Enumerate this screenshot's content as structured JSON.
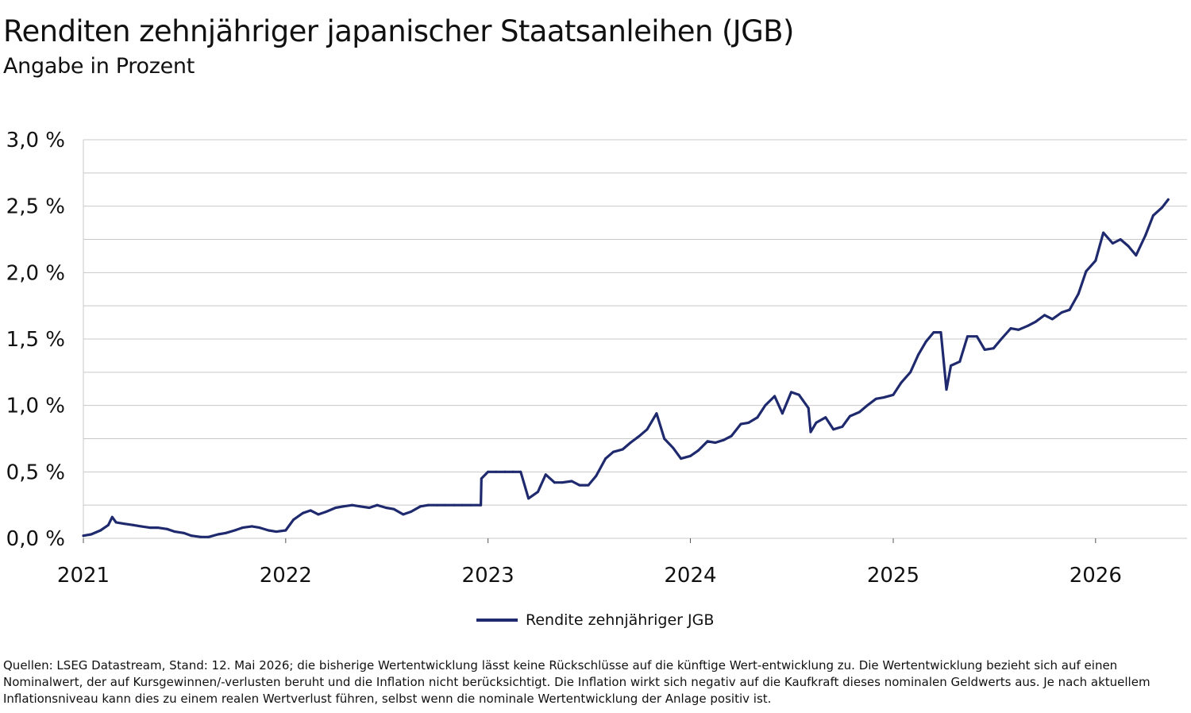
{
  "header": {
    "title": "Renditen zehnjähriger japanischer Staatsanleihen (JGB)",
    "subtitle": "Angabe in Prozent"
  },
  "colors": {
    "series": "#1f2a6e",
    "grid": "#c8c8c8",
    "axis": "#555555"
  },
  "chart_data": {
    "type": "line",
    "title": "Renditen zehnjähriger japanischer Staatsanleihen (JGB)",
    "subtitle": "Angabe in Prozent",
    "xlabel": "",
    "ylabel": "",
    "x_ticks": [
      "2021",
      "2022",
      "2023",
      "2024",
      "2025",
      "2026"
    ],
    "y_ticks": [
      "0,0 %",
      "0,5 %",
      "1,0 %",
      "1,5 %",
      "2,0 %",
      "2,5 %",
      "3,0 %"
    ],
    "xlim": [
      "2021-01-01",
      "2026-06-15"
    ],
    "ylim": [
      0,
      3.0
    ],
    "grid": true,
    "legend_position": "bottom-center",
    "series": [
      {
        "name": "Rendite zehnjähriger JGB",
        "x": [
          "2021-01-01",
          "2021-01-15",
          "2021-02-01",
          "2021-02-15",
          "2021-02-22",
          "2021-03-01",
          "2021-03-15",
          "2021-04-01",
          "2021-04-15",
          "2021-05-01",
          "2021-05-15",
          "2021-06-01",
          "2021-06-15",
          "2021-07-01",
          "2021-07-15",
          "2021-08-01",
          "2021-08-15",
          "2021-09-01",
          "2021-09-15",
          "2021-10-01",
          "2021-10-15",
          "2021-11-01",
          "2021-11-15",
          "2021-12-01",
          "2021-12-15",
          "2022-01-01",
          "2022-01-15",
          "2022-02-01",
          "2022-02-15",
          "2022-03-01",
          "2022-03-15",
          "2022-04-01",
          "2022-04-15",
          "2022-05-01",
          "2022-05-15",
          "2022-06-01",
          "2022-06-15",
          "2022-07-01",
          "2022-07-15",
          "2022-08-01",
          "2022-08-15",
          "2022-09-01",
          "2022-09-15",
          "2022-10-01",
          "2022-10-15",
          "2022-11-01",
          "2022-11-15",
          "2022-12-01",
          "2022-12-19",
          "2022-12-20",
          "2023-01-01",
          "2023-01-15",
          "2023-02-01",
          "2023-02-15",
          "2023-03-01",
          "2023-03-15",
          "2023-04-01",
          "2023-04-15",
          "2023-05-01",
          "2023-05-15",
          "2023-06-01",
          "2023-06-15",
          "2023-07-01",
          "2023-07-15",
          "2023-08-01",
          "2023-08-15",
          "2023-09-01",
          "2023-09-15",
          "2023-10-01",
          "2023-10-15",
          "2023-11-01",
          "2023-11-15",
          "2023-12-01",
          "2023-12-15",
          "2024-01-01",
          "2024-01-15",
          "2024-02-01",
          "2024-02-15",
          "2024-03-01",
          "2024-03-15",
          "2024-04-01",
          "2024-04-15",
          "2024-05-01",
          "2024-05-15",
          "2024-06-01",
          "2024-06-15",
          "2024-07-01",
          "2024-07-15",
          "2024-08-01",
          "2024-08-05",
          "2024-08-15",
          "2024-09-01",
          "2024-09-15",
          "2024-10-01",
          "2024-10-15",
          "2024-11-01",
          "2024-11-15",
          "2024-12-01",
          "2024-12-15",
          "2025-01-01",
          "2025-01-15",
          "2025-02-01",
          "2025-02-15",
          "2025-03-01",
          "2025-03-15",
          "2025-03-28",
          "2025-04-07",
          "2025-04-15",
          "2025-05-01",
          "2025-05-15",
          "2025-06-01",
          "2025-06-15",
          "2025-07-01",
          "2025-07-15",
          "2025-08-01",
          "2025-08-15",
          "2025-09-01",
          "2025-09-15",
          "2025-10-01",
          "2025-10-15",
          "2025-11-01",
          "2025-11-15",
          "2025-12-01",
          "2025-12-15",
          "2026-01-01",
          "2026-01-15",
          "2026-02-01",
          "2026-02-15",
          "2026-03-01",
          "2026-03-15",
          "2026-04-01",
          "2026-04-15",
          "2026-05-01",
          "2026-05-12"
        ],
        "values": [
          0.02,
          0.03,
          0.06,
          0.1,
          0.16,
          0.12,
          0.11,
          0.1,
          0.09,
          0.08,
          0.08,
          0.07,
          0.05,
          0.04,
          0.02,
          0.01,
          0.01,
          0.03,
          0.04,
          0.06,
          0.08,
          0.09,
          0.08,
          0.06,
          0.05,
          0.06,
          0.14,
          0.19,
          0.21,
          0.18,
          0.2,
          0.23,
          0.24,
          0.25,
          0.24,
          0.23,
          0.25,
          0.23,
          0.22,
          0.18,
          0.2,
          0.24,
          0.25,
          0.25,
          0.25,
          0.25,
          0.25,
          0.25,
          0.25,
          0.45,
          0.5,
          0.5,
          0.5,
          0.5,
          0.5,
          0.3,
          0.35,
          0.48,
          0.42,
          0.42,
          0.43,
          0.4,
          0.4,
          0.47,
          0.6,
          0.65,
          0.67,
          0.72,
          0.77,
          0.82,
          0.94,
          0.75,
          0.68,
          0.6,
          0.62,
          0.66,
          0.73,
          0.72,
          0.74,
          0.77,
          0.86,
          0.87,
          0.91,
          1.0,
          1.07,
          0.94,
          1.1,
          1.08,
          0.98,
          0.8,
          0.87,
          0.91,
          0.82,
          0.84,
          0.92,
          0.95,
          1.0,
          1.05,
          1.06,
          1.08,
          1.17,
          1.25,
          1.38,
          1.48,
          1.55,
          1.55,
          1.12,
          1.3,
          1.33,
          1.52,
          1.52,
          1.42,
          1.43,
          1.5,
          1.58,
          1.57,
          1.6,
          1.63,
          1.68,
          1.65,
          1.7,
          1.72,
          1.84,
          2.01,
          2.09,
          2.3,
          2.22,
          2.25,
          2.2,
          2.13,
          2.28,
          2.43,
          2.49,
          2.55
        ]
      }
    ]
  },
  "legend": {
    "label": "Rendite zehnjähriger JGB"
  },
  "footnote": "Quellen: LSEG Datastream, Stand: 12. Mai 2026; die bisherige Wertentwicklung lässt keine Rückschlüsse auf die künftige Wert-entwicklung zu. Die Wertentwicklung bezieht sich auf einen Nominalwert, der auf Kursgewinnen/-verlusten beruht und die Inflation nicht berücksichtigt. Die Inflation wirkt sich negativ auf die Kaufkraft dieses nominalen Geldwerts aus. Je nach aktuellem Inflationsniveau kann dies zu einem realen Wertverlust führen, selbst wenn die nominale Wertentwicklung der Anlage positiv ist."
}
